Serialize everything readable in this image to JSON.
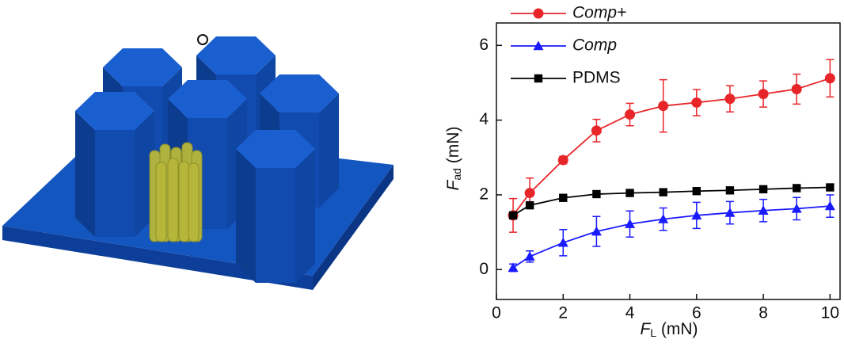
{
  "chart_data": {
    "type": "line",
    "x_label": {
      "symbol": "F",
      "subscript": "L",
      "unit": "(mN)"
    },
    "y_label": {
      "symbol": "F",
      "subscript": "ad",
      "unit": "(mN)"
    },
    "x": [
      0.5,
      1,
      2,
      3,
      4,
      5,
      6,
      7,
      8,
      9,
      10
    ],
    "series": [
      {
        "name": "Comp+",
        "italic": true,
        "color": "#e8262a",
        "marker": "circle",
        "values": [
          1.45,
          2.05,
          2.93,
          3.72,
          4.15,
          4.38,
          4.47,
          4.57,
          4.7,
          4.83,
          5.12
        ],
        "errors": [
          0.45,
          0.4,
          0.1,
          0.3,
          0.3,
          0.7,
          0.35,
          0.35,
          0.35,
          0.4,
          0.5
        ]
      },
      {
        "name": "Comp",
        "italic": true,
        "color": "#1a1aff",
        "marker": "triangle",
        "values": [
          0.05,
          0.35,
          0.72,
          1.02,
          1.22,
          1.35,
          1.45,
          1.52,
          1.58,
          1.63,
          1.7
        ],
        "errors": [
          0.1,
          0.15,
          0.35,
          0.4,
          0.35,
          0.3,
          0.35,
          0.3,
          0.3,
          0.3,
          0.3
        ]
      },
      {
        "name": "PDMS",
        "italic": false,
        "color": "#000000",
        "marker": "square",
        "values": [
          1.45,
          1.72,
          1.92,
          2.02,
          2.05,
          2.07,
          2.1,
          2.12,
          2.15,
          2.18,
          2.2
        ],
        "errors": [
          0.05,
          0.05,
          0.05,
          0.05,
          0.05,
          0.05,
          0.05,
          0.05,
          0.05,
          0.05,
          0.05
        ]
      }
    ],
    "xlim": [
      0,
      10.3
    ],
    "ylim": [
      -0.8,
      6.6
    ],
    "xticks": [
      0,
      2,
      4,
      6,
      8,
      10
    ],
    "yticks": [
      0,
      2,
      4,
      6
    ],
    "grid": false,
    "legend": "upper left"
  }
}
